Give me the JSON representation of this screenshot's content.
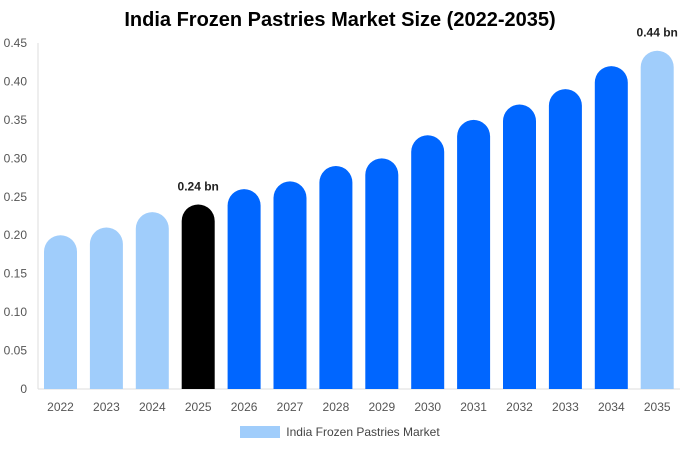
{
  "chart_data": {
    "type": "bar",
    "title": "India Frozen Pastries Market Size (2022-2035)",
    "categories": [
      "2022",
      "2023",
      "2024",
      "2025",
      "2026",
      "2027",
      "2028",
      "2029",
      "2030",
      "2031",
      "2032",
      "2033",
      "2034",
      "2035"
    ],
    "series": [
      {
        "name": "India Frozen Pastries Market",
        "values": [
          0.2,
          0.21,
          0.23,
          0.24,
          0.26,
          0.27,
          0.29,
          0.3,
          0.33,
          0.35,
          0.37,
          0.39,
          0.42,
          0.44
        ]
      }
    ],
    "y_ticks": [
      "0",
      "0.05",
      "0.10",
      "0.15",
      "0.20",
      "0.25",
      "0.30",
      "0.35",
      "0.40",
      "0.45"
    ],
    "ylim": [
      0,
      0.45
    ],
    "data_labels": [
      {
        "category": "2025",
        "text": "0.24 bn"
      },
      {
        "category": "2035",
        "text": "0.44 bn"
      }
    ],
    "bar_colors": [
      "#a0cdfb",
      "#a0cdfb",
      "#a0cdfb",
      "#000000",
      "#0066ff",
      "#0066ff",
      "#0066ff",
      "#0066ff",
      "#0066ff",
      "#0066ff",
      "#0066ff",
      "#0066ff",
      "#0066ff",
      "#a0cdfb"
    ],
    "legend_position": "bottom-center",
    "legend_color": "#a0cdfb",
    "grid": false
  }
}
